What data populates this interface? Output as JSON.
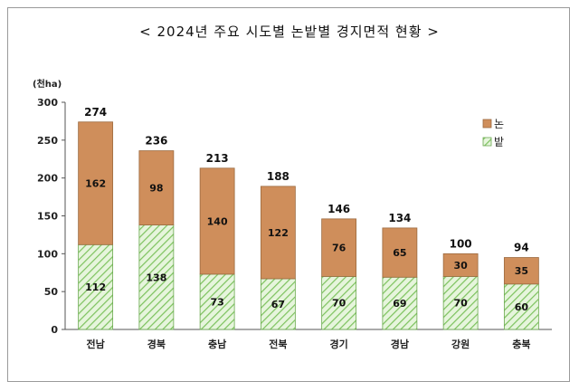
{
  "chart_data": {
    "type": "bar",
    "stacked": true,
    "title": "< 2024년 주요 시도별 논밭별 경지면적 현황 >",
    "unit_label": "(천ha)",
    "categories": [
      "전남",
      "경북",
      "충남",
      "전북",
      "경기",
      "경남",
      "강원",
      "충북"
    ],
    "series": [
      {
        "name": "밭",
        "values": [
          112,
          138,
          73,
          67,
          70,
          69,
          70,
          60
        ],
        "color": "#c6e9b4"
      },
      {
        "name": "논",
        "values": [
          162,
          98,
          140,
          122,
          76,
          65,
          30,
          35
        ],
        "color": "#cf8e5b"
      }
    ],
    "totals": [
      274,
      236,
      213,
      188,
      146,
      134,
      100,
      94
    ],
    "ylim": [
      0,
      300
    ],
    "yticks": [
      0,
      50,
      100,
      150,
      200,
      250,
      300
    ],
    "legend": {
      "position": "right",
      "items": [
        "논",
        "밭"
      ]
    },
    "grid": false
  }
}
